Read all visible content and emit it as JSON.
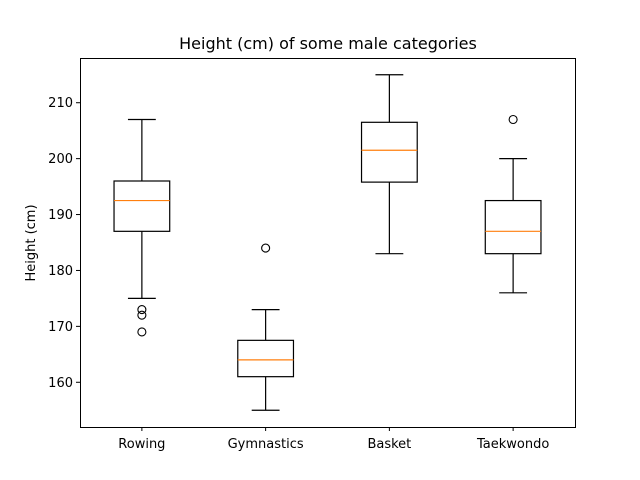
{
  "chart_data": {
    "type": "box",
    "title": "Height (cm) of some male categories",
    "xlabel": "",
    "ylabel": "Height (cm)",
    "ylim": [
      152.0,
      218.0
    ],
    "yticks": [
      160,
      170,
      180,
      190,
      200,
      210
    ],
    "grid": false,
    "categories": [
      "Rowing",
      "Gymnastics",
      "Basket",
      "Taekwondo"
    ],
    "boxes": [
      {
        "category": "Rowing",
        "whisker_low": 175,
        "q1": 187,
        "median": 192.5,
        "q3": 196,
        "whisker_high": 207,
        "outliers": [
          173,
          172,
          169
        ]
      },
      {
        "category": "Gymnastics",
        "whisker_low": 155,
        "q1": 161,
        "median": 164,
        "q3": 167.5,
        "whisker_high": 173,
        "outliers": [
          184
        ]
      },
      {
        "category": "Basket",
        "whisker_low": 183,
        "q1": 195.8,
        "median": 201.5,
        "q3": 206.5,
        "whisker_high": 215,
        "outliers": []
      },
      {
        "category": "Taekwondo",
        "whisker_low": 176,
        "q1": 183,
        "median": 187,
        "q3": 192.5,
        "whisker_high": 200,
        "outliers": [
          207
        ]
      }
    ],
    "colors": {
      "box": "#000000",
      "median": "#ff7f0e",
      "outlier": "#000000"
    }
  }
}
